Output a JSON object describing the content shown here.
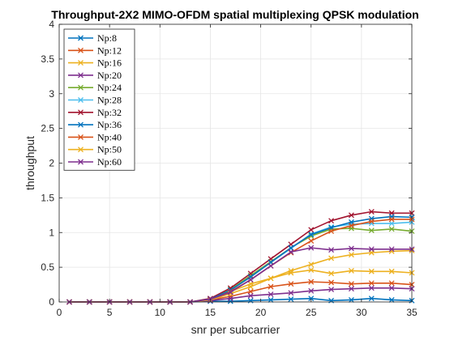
{
  "chart_data": {
    "type": "line",
    "title": "Throughput-2X2 MIMO-OFDM spatial multiplexing QPSK modulation",
    "xlabel": "snr per subcarrier",
    "ylabel": "throughput",
    "xlim": [
      0,
      35
    ],
    "ylim": [
      0,
      4
    ],
    "xticks": [
      "0",
      "5",
      "10",
      "15",
      "20",
      "25",
      "30",
      "35"
    ],
    "yticks": [
      "0",
      "0.5",
      "1",
      "1.5",
      "2",
      "2.5",
      "3",
      "3.5",
      "4"
    ],
    "grid": true,
    "legend_position": "top-left",
    "marker": "x",
    "x": [
      1,
      3,
      5,
      7,
      9,
      11,
      13,
      15,
      17,
      19,
      21,
      23,
      25,
      27,
      29,
      31,
      33,
      35
    ],
    "series": [
      {
        "name": "Np:8",
        "color": "#0072BD",
        "values": [
          0,
          0,
          0,
          0,
          0,
          0,
          0,
          0.01,
          0.01,
          0.02,
          0.03,
          0.04,
          0.05,
          0.02,
          0.03,
          0.05,
          0.03,
          0.02
        ]
      },
      {
        "name": "Np:12",
        "color": "#D95319",
        "values": [
          0,
          0,
          0,
          0,
          0,
          0,
          0,
          0.03,
          0.08,
          0.15,
          0.22,
          0.26,
          0.29,
          0.28,
          0.26,
          0.27,
          0.27,
          0.25
        ]
      },
      {
        "name": "Np:16",
        "color": "#EDB120",
        "values": [
          0,
          0,
          0,
          0,
          0,
          0,
          0,
          0.04,
          0.15,
          0.26,
          0.34,
          0.42,
          0.46,
          0.41,
          0.45,
          0.44,
          0.44,
          0.42
        ]
      },
      {
        "name": "Np:20",
        "color": "#7E2F8E",
        "values": [
          0,
          0,
          0,
          0,
          0,
          0,
          0,
          0.02,
          0.05,
          0.09,
          0.11,
          0.13,
          0.16,
          0.18,
          0.19,
          0.2,
          0.2,
          0.19
        ]
      },
      {
        "name": "Np:24",
        "color": "#77AC30",
        "values": [
          0,
          0,
          0,
          0,
          0,
          0,
          0,
          0.04,
          0.18,
          0.38,
          0.58,
          0.78,
          0.95,
          1.05,
          1.06,
          1.03,
          1.05,
          1.02
        ]
      },
      {
        "name": "Np:28",
        "color": "#4DBEEE",
        "values": [
          0,
          0,
          0,
          0,
          0,
          0,
          0,
          0.04,
          0.17,
          0.36,
          0.57,
          0.77,
          0.98,
          1.08,
          1.12,
          1.13,
          1.13,
          1.15
        ]
      },
      {
        "name": "Np:32",
        "color": "#A2142F",
        "values": [
          0,
          0,
          0,
          0,
          0,
          0,
          0,
          0.05,
          0.2,
          0.41,
          0.62,
          0.83,
          1.04,
          1.17,
          1.25,
          1.3,
          1.28,
          1.28
        ]
      },
      {
        "name": "Np:36",
        "color": "#0072BD",
        "values": [
          0,
          0,
          0,
          0,
          0,
          0,
          0,
          0.04,
          0.17,
          0.36,
          0.57,
          0.78,
          0.97,
          1.07,
          1.15,
          1.2,
          1.23,
          1.22
        ]
      },
      {
        "name": "Np:40",
        "color": "#D95319",
        "values": [
          0,
          0,
          0,
          0,
          0,
          0,
          0,
          0.03,
          0.15,
          0.32,
          0.52,
          0.71,
          0.88,
          1.02,
          1.1,
          1.16,
          1.19,
          1.19
        ]
      },
      {
        "name": "Np:50",
        "color": "#EDB120",
        "values": [
          0,
          0,
          0,
          0,
          0,
          0,
          0,
          0.03,
          0.12,
          0.22,
          0.34,
          0.45,
          0.54,
          0.63,
          0.68,
          0.71,
          0.73,
          0.74
        ]
      },
      {
        "name": "Np:60",
        "color": "#7E2F8E",
        "values": [
          0,
          0,
          0,
          0,
          0,
          0,
          0,
          0.04,
          0.14,
          0.32,
          0.52,
          0.72,
          0.78,
          0.75,
          0.77,
          0.76,
          0.76,
          0.76
        ]
      }
    ]
  }
}
